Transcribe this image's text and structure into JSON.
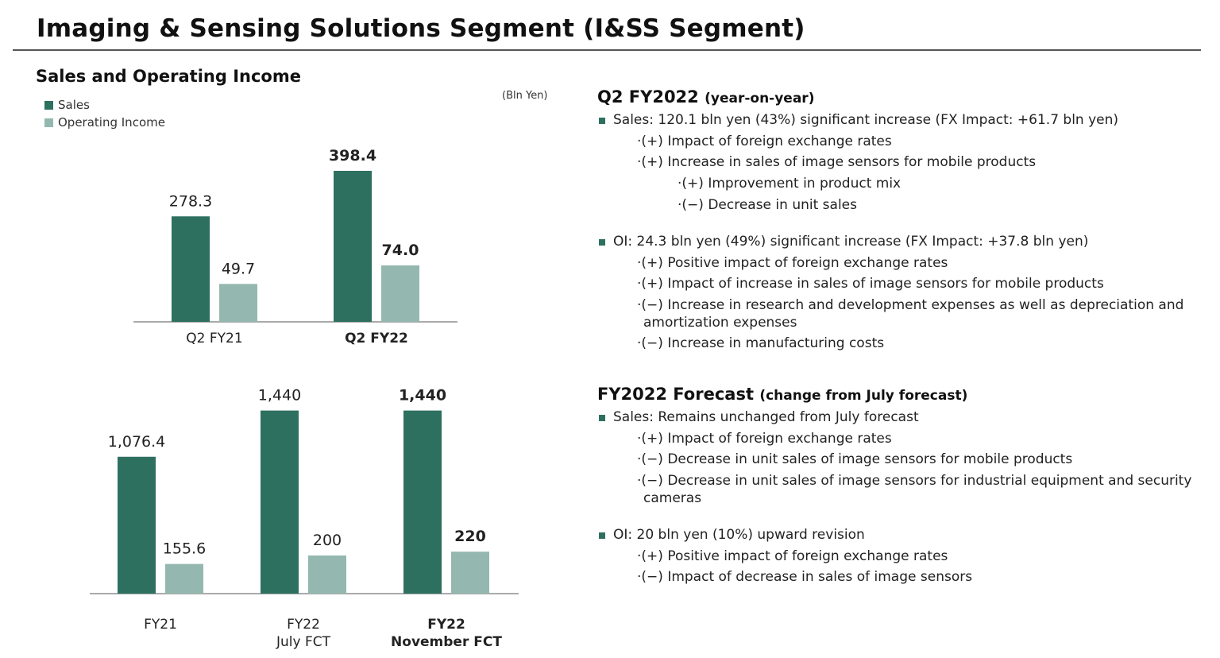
{
  "header": {
    "title": "Imaging & Sensing Solutions Segment (I&SS Segment)"
  },
  "left": {
    "subtitle": "Sales and Operating Income",
    "legend": [
      {
        "label": "Sales",
        "color": "#2e7060"
      },
      {
        "label": "Operating Income",
        "color": "#94b8b0"
      }
    ],
    "unit": "(Bln Yen)"
  },
  "chart_data": [
    {
      "type": "bar",
      "categories": [
        "Q2 FY21",
        "Q2 FY22"
      ],
      "bold_categories": [
        "Q2 FY22"
      ],
      "series": [
        {
          "name": "Sales",
          "color": "#2e7060",
          "values": [
            278.3,
            398.4
          ],
          "labels": [
            "278.3",
            "398.4"
          ]
        },
        {
          "name": "Operating Income",
          "color": "#94b8b0",
          "values": [
            49.7,
            74.0
          ],
          "labels": [
            "49.7",
            "74.0"
          ]
        }
      ],
      "ylabel": "(Bln Yen)",
      "grid": false,
      "legend": "top-left"
    },
    {
      "type": "bar",
      "categories": [
        "FY21",
        "FY22 July FCT",
        "FY22 November FCT"
      ],
      "category_lines": [
        [
          "FY21"
        ],
        [
          "FY22",
          "July FCT"
        ],
        [
          "FY22",
          "November FCT"
        ]
      ],
      "bold_categories": [
        "FY22 November FCT"
      ],
      "series": [
        {
          "name": "Sales",
          "color": "#2e7060",
          "values": [
            1076.4,
            1440,
            1440
          ],
          "labels": [
            "1,076.4",
            "1,440",
            "1,440"
          ]
        },
        {
          "name": "Operating Income",
          "color": "#94b8b0",
          "values": [
            155.6,
            200,
            220
          ],
          "labels": [
            "155.6",
            "200",
            "220"
          ]
        }
      ],
      "grid": false,
      "legend": "top-left"
    }
  ],
  "right": {
    "sections": [
      {
        "heading": "Q2 FY2022",
        "heading_note": "(year-on-year)",
        "groups": [
          {
            "bullet": "Sales: 120.1 bln yen (43%) significant increase (FX Impact: +61.7 bln yen)",
            "items": [
              {
                "level": 1,
                "text": "·(+) Impact of foreign exchange rates"
              },
              {
                "level": 1,
                "text": "·(+) Increase in sales of image sensors for mobile products"
              },
              {
                "level": 2,
                "text": "·(+) Improvement in product mix"
              },
              {
                "level": 2,
                "text": "·(−) Decrease in unit sales"
              }
            ]
          },
          {
            "bullet": "OI: 24.3 bln yen (49%) significant increase (FX Impact: +37.8 bln yen)",
            "items": [
              {
                "level": 1,
                "text": "·(+) Positive impact of foreign exchange rates"
              },
              {
                "level": 1,
                "text": "·(+) Impact of increase in sales of image sensors for mobile products"
              },
              {
                "level": 1,
                "text": "·(−) Increase in research and development expenses as well as depreciation and amortization expenses"
              },
              {
                "level": 1,
                "text": "·(−) Increase in manufacturing costs"
              }
            ]
          }
        ]
      },
      {
        "heading": "FY2022 Forecast",
        "heading_note": "(change from July forecast)",
        "groups": [
          {
            "bullet": "Sales: Remains unchanged from July forecast",
            "items": [
              {
                "level": 1,
                "text": "·(+) Impact of foreign exchange rates"
              },
              {
                "level": 1,
                "text": "·(−) Decrease in unit sales of image sensors for mobile products"
              },
              {
                "level": 1,
                "text": "·(−) Decrease in unit sales of image sensors for industrial equipment and security cameras"
              }
            ]
          },
          {
            "bullet": "OI: 20 bln yen (10%) upward revision",
            "items": [
              {
                "level": 1,
                "text": "·(+) Positive impact of foreign exchange rates"
              },
              {
                "level": 1,
                "text": "·(−) Impact of decrease in sales of image sensors"
              }
            ]
          }
        ]
      }
    ]
  }
}
